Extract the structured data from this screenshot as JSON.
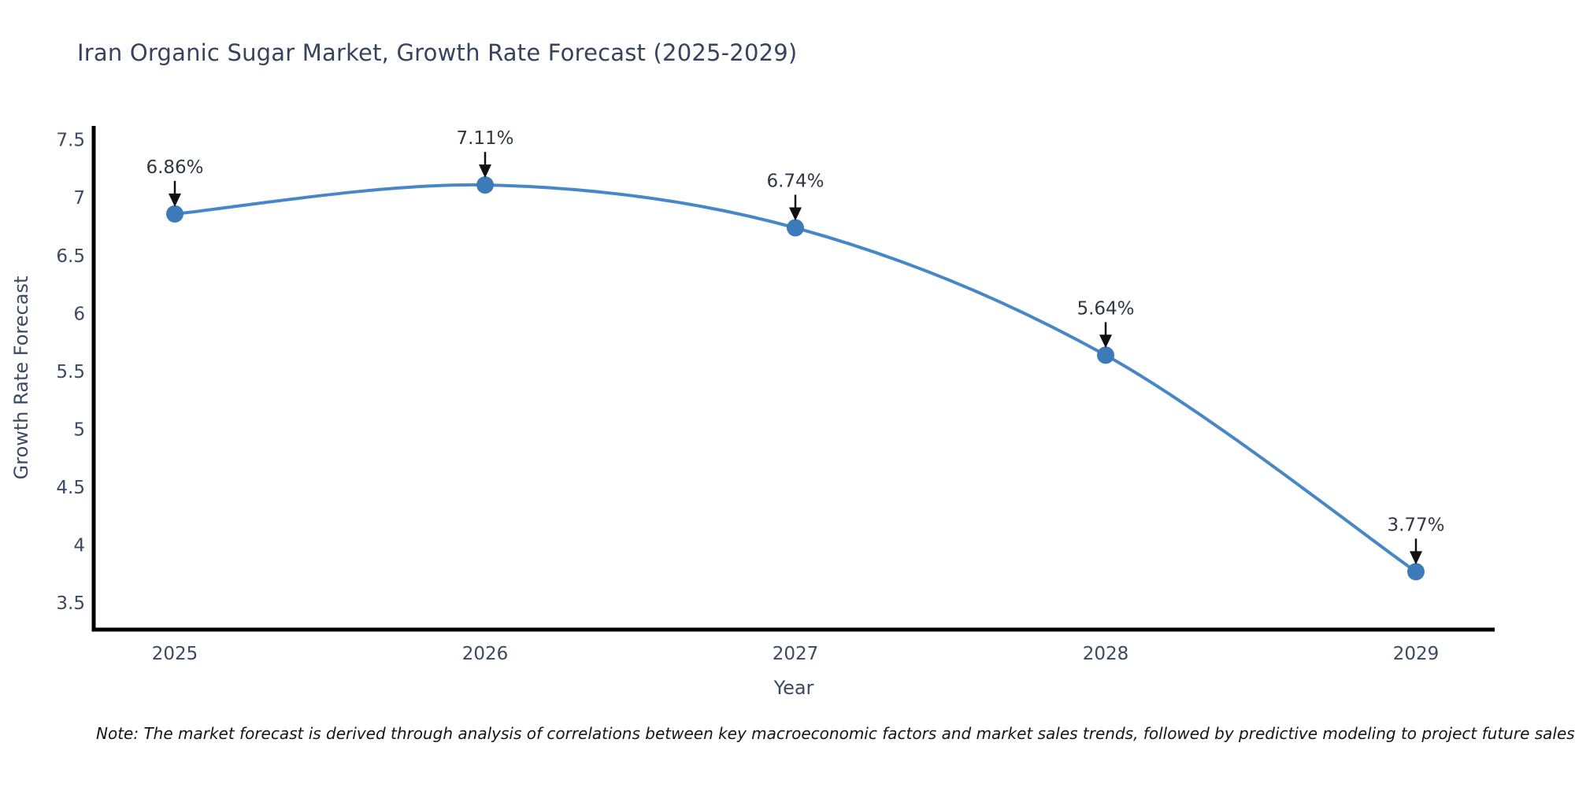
{
  "chart_data": {
    "type": "line",
    "title": "Iran Organic Sugar Market, Growth Rate Forecast (2025-2029)",
    "xlabel": "Year",
    "ylabel": "Growth Rate Forecast",
    "categories": [
      "2025",
      "2026",
      "2027",
      "2028",
      "2029"
    ],
    "values": [
      6.86,
      7.11,
      6.74,
      5.64,
      3.77
    ],
    "point_labels": [
      "6.86%",
      "7.11%",
      "6.74%",
      "5.64%",
      "3.77%"
    ],
    "y_ticks": [
      3.5,
      4,
      4.5,
      5,
      5.5,
      6,
      6.5,
      7,
      7.5
    ],
    "ylim": [
      3.27,
      7.62
    ],
    "grid": false,
    "legend": false,
    "line_shape": "spline",
    "colors": {
      "line": "#4787c7",
      "marker": "#3d7ab8",
      "axis": "#000000",
      "tick_text": "#3b4a63",
      "annotation_text": "#2f3743",
      "arrow": "#111111"
    }
  },
  "note": "Note: The market forecast is derived through analysis of correlations between key macroeconomic factors and market sales trends, followed by predictive modeling to project future sales"
}
